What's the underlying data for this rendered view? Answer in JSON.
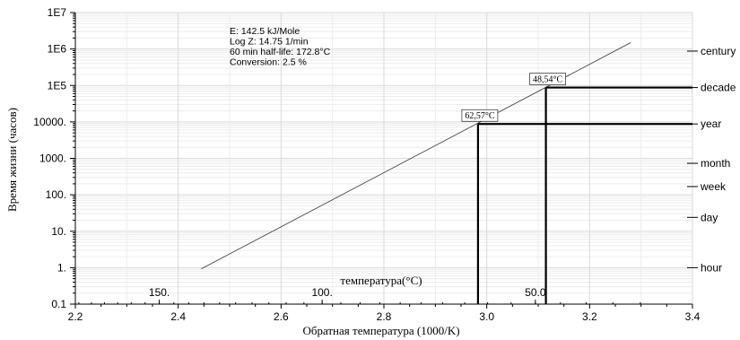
{
  "chart_data": {
    "type": "line",
    "xlabel": "Обратная температура (1000/K)",
    "ylabel": "Время жизни (часов)",
    "xlim": [
      2.2,
      3.4
    ],
    "ylim": [
      0.1,
      10000000
    ],
    "yscale": "log",
    "grid": true,
    "x_ticks": [
      {
        "value": 2.2,
        "label": "2.2"
      },
      {
        "value": 2.4,
        "label": "2.4"
      },
      {
        "value": 2.6,
        "label": "2.6"
      },
      {
        "value": 2.8,
        "label": "2.8"
      },
      {
        "value": 3.0,
        "label": "3.0"
      },
      {
        "value": 3.2,
        "label": "3.2"
      },
      {
        "value": 3.4,
        "label": "3.4"
      }
    ],
    "y_ticks": [
      {
        "value": 0.1,
        "label": "0.1"
      },
      {
        "value": 1,
        "label": "1."
      },
      {
        "value": 10,
        "label": "10."
      },
      {
        "value": 100,
        "label": "100."
      },
      {
        "value": 1000,
        "label": "1000."
      },
      {
        "value": 10000,
        "label": "10000."
      },
      {
        "value": 100000,
        "label": "1E5"
      },
      {
        "value": 1000000,
        "label": "1E6"
      },
      {
        "value": 10000000,
        "label": "1E7"
      }
    ],
    "right_axis_ticks": [
      {
        "value": 1,
        "label": "hour"
      },
      {
        "value": 24,
        "label": "day"
      },
      {
        "value": 168,
        "label": "week"
      },
      {
        "value": 730,
        "label": "month"
      },
      {
        "value": 8760,
        "label": "year"
      },
      {
        "value": 87600,
        "label": "decade"
      },
      {
        "value": 876000,
        "label": "century"
      }
    ],
    "temperature_axis": {
      "title": "температура(°C)",
      "ticks": [
        {
          "value": 150,
          "label": "150."
        },
        {
          "value": 100,
          "label": "100."
        },
        {
          "value": 50,
          "label": "50.0"
        }
      ]
    },
    "series": [
      {
        "x": [
          2.445,
          3.28
        ],
        "y": [
          0.93,
          1500000
        ]
      }
    ],
    "annotations": {
      "text_lines": [
        "E: 142.5 kJ/Mole",
        "Log Z: 14.75 1/min",
        "60 min half-life: 172.8°C",
        "Conversion: 2.5 %"
      ],
      "markers": [
        {
          "label": "62,57°C",
          "x": 2.983,
          "y": 8760
        },
        {
          "label": "48,54°C",
          "x": 3.115,
          "y": 87600
        }
      ]
    }
  }
}
